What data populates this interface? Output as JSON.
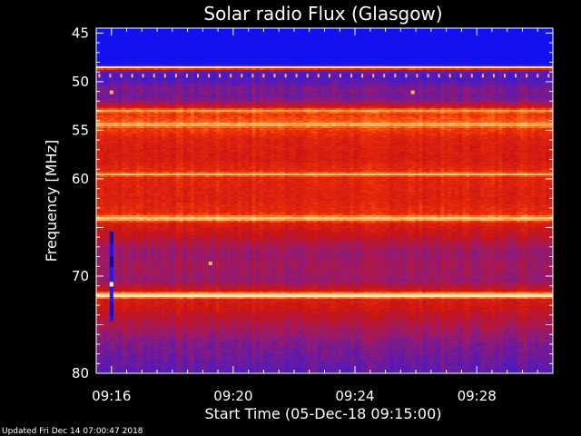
{
  "chart_data": {
    "type": "heatmap",
    "title": "Solar radio Flux (Glasgow)",
    "xlabel": "Start Time (05-Dec-18 09:15:00)",
    "ylabel": "Frequency [MHz]",
    "x_unit": "minutes after 09:15:00",
    "xlim": [
      0.0,
      15.0
    ],
    "ylim": [
      44.5,
      80.0
    ],
    "y_direction": "frequency increases downward",
    "x_ticks": [
      {
        "value": 0.5,
        "label": "09:16"
      },
      {
        "value": 4.5,
        "label": "09:20"
      },
      {
        "value": 8.5,
        "label": "09:24"
      },
      {
        "value": 12.5,
        "label": "09:28"
      }
    ],
    "x_minor_step": 0.5,
    "y_ticks": [
      {
        "value": 45,
        "label": "45"
      },
      {
        "value": 50,
        "label": "50"
      },
      {
        "value": 55,
        "label": "55"
      },
      {
        "value": 60,
        "label": "60"
      },
      {
        "value": 65,
        "label": ""
      },
      {
        "value": 70,
        "label": "70"
      },
      {
        "value": 75,
        "label": ""
      },
      {
        "value": 80,
        "label": "80"
      }
    ],
    "y_minor_step": 1,
    "colormap": [
      "#000060",
      "#0000c8",
      "#1a1aff",
      "#5a1ab0",
      "#9a1a6a",
      "#c81414",
      "#e82a0a",
      "#ff6a10",
      "#ffb060",
      "#ffe4b0",
      "#ffffff"
    ],
    "frequency_profile": [
      {
        "f": 44.5,
        "v": 0.17
      },
      {
        "f": 48.3,
        "v": 0.17
      },
      {
        "f": 48.5,
        "v": 0.9
      },
      {
        "f": 48.9,
        "v": 0.35
      },
      {
        "f": 49.3,
        "v": 0.28
      },
      {
        "f": 50.0,
        "v": 0.3
      },
      {
        "f": 50.8,
        "v": 0.36
      },
      {
        "f": 51.5,
        "v": 0.34
      },
      {
        "f": 52.0,
        "v": 0.38
      },
      {
        "f": 52.6,
        "v": 0.52
      },
      {
        "f": 53.0,
        "v": 0.78
      },
      {
        "f": 53.3,
        "v": 0.62
      },
      {
        "f": 54.1,
        "v": 0.68
      },
      {
        "f": 54.4,
        "v": 0.84
      },
      {
        "f": 54.8,
        "v": 0.64
      },
      {
        "f": 56.0,
        "v": 0.56
      },
      {
        "f": 58.0,
        "v": 0.54
      },
      {
        "f": 59.3,
        "v": 0.6
      },
      {
        "f": 59.5,
        "v": 0.88
      },
      {
        "f": 59.8,
        "v": 0.58
      },
      {
        "f": 62.0,
        "v": 0.56
      },
      {
        "f": 63.6,
        "v": 0.6
      },
      {
        "f": 64.1,
        "v": 0.88
      },
      {
        "f": 64.5,
        "v": 0.56
      },
      {
        "f": 66.0,
        "v": 0.48
      },
      {
        "f": 67.5,
        "v": 0.4
      },
      {
        "f": 69.0,
        "v": 0.42
      },
      {
        "f": 70.5,
        "v": 0.4
      },
      {
        "f": 71.5,
        "v": 0.52
      },
      {
        "f": 72.0,
        "v": 0.97
      },
      {
        "f": 72.4,
        "v": 0.55
      },
      {
        "f": 74.0,
        "v": 0.48
      },
      {
        "f": 75.5,
        "v": 0.42
      },
      {
        "f": 77.0,
        "v": 0.36
      },
      {
        "f": 78.5,
        "v": 0.33
      },
      {
        "f": 80.0,
        "v": 0.3
      }
    ],
    "burst_column": {
      "time": 0.5,
      "f_start": 65.4,
      "f_end": 74.6,
      "segments": [
        {
          "f": 65.4,
          "v": 0.08
        },
        {
          "f": 66.5,
          "v": 0.18
        },
        {
          "f": 68.0,
          "v": 0.05
        },
        {
          "f": 69.0,
          "v": 0.2
        },
        {
          "f": 70.5,
          "v": 0.95
        },
        {
          "f": 71.0,
          "v": 0.2
        },
        {
          "f": 72.5,
          "v": 0.12
        },
        {
          "f": 74.0,
          "v": 0.18
        }
      ]
    },
    "spot_markers": [
      {
        "time": 0.5,
        "f": 51.1
      },
      {
        "time": 10.4,
        "f": 51.1
      },
      {
        "time": 3.75,
        "f": 68.7
      }
    ]
  },
  "footer": "Updated Fri Dec 14 07:00:47 2018"
}
